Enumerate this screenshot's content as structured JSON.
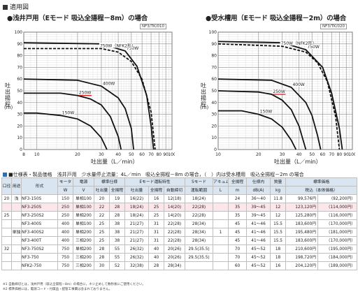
{
  "header": {
    "label": "適用図"
  },
  "chart_data": [
    {
      "type": "line",
      "title": "●浅井戸用（Eモード 吸込全揚程－8m）の場合",
      "code": "NF3/TK/010",
      "ylabel": "吐出揚程",
      "yunit": "(m)",
      "xlabel": "吐出量（L／min）",
      "ylim": [
        0,
        100
      ],
      "xlim": [
        8,
        100
      ],
      "y_ticks": [
        "0",
        "10",
        "20",
        "30",
        "40",
        "50",
        "60",
        "70",
        "80",
        "90",
        "100"
      ],
      "x_ticks": [
        "8",
        "10",
        "20",
        "30",
        "40",
        "50",
        "60",
        "70",
        "80",
        "90",
        "100"
      ],
      "series": [
        {
          "name": "150W",
          "x": [
            8,
            10,
            15,
            20,
            25,
            30,
            33
          ],
          "y": [
            31,
            31,
            29,
            26,
            20,
            10,
            0
          ]
        },
        {
          "name": "250W",
          "x": [
            8,
            15,
            20,
            25,
            30,
            35,
            40,
            42
          ],
          "y": [
            48,
            48,
            46,
            43,
            38,
            28,
            11,
            0
          ]
        },
        {
          "name": "400W",
          "x": [
            8,
            20,
            30,
            40,
            45,
            50,
            52
          ],
          "y": [
            60,
            59,
            54,
            44,
            35,
            18,
            0
          ]
        },
        {
          "name": "750W",
          "x": [
            8,
            30,
            45,
            55,
            65,
            70,
            73
          ],
          "y": [
            91,
            90,
            84,
            71,
            46,
            20,
            0
          ]
        },
        {
          "name": "750W（NFK2形）",
          "x": [
            8,
            30,
            40,
            50,
            60,
            70,
            75
          ],
          "y": [
            86,
            86,
            83,
            75,
            60,
            32,
            0
          ]
        }
      ]
    },
    {
      "type": "line",
      "title": "●受水槽用（Eモード 吸込全揚程－2m）の場合",
      "code": "NF3/TK/020",
      "ylabel": "吐出揚程",
      "yunit": "(m)",
      "xlabel": "吐出量（L／min）",
      "ylim": [
        0,
        100
      ],
      "xlim": [
        10,
        100
      ],
      "y_ticks": [
        "0",
        "10",
        "20",
        "30",
        "40",
        "50",
        "60",
        "70",
        "80",
        "90",
        "100"
      ],
      "x_ticks": [
        "10",
        "20",
        "30",
        "40",
        "50",
        "60",
        "70",
        "80",
        "90",
        "100"
      ],
      "series": [
        {
          "name": "150W",
          "x": [
            10,
            15,
            20,
            25,
            30,
            35,
            38
          ],
          "y": [
            33,
            33,
            30,
            26,
            19,
            8,
            0
          ]
        },
        {
          "name": "250W",
          "x": [
            10,
            20,
            25,
            30,
            35,
            40,
            45
          ],
          "y": [
            50,
            49,
            47,
            42,
            34,
            20,
            0
          ]
        },
        {
          "name": "400W",
          "x": [
            10,
            25,
            35,
            45,
            50,
            55,
            58
          ],
          "y": [
            60,
            59,
            53,
            40,
            29,
            12,
            0
          ]
        },
        {
          "name": "750W",
          "x": [
            10,
            30,
            45,
            60,
            70,
            80,
            84
          ],
          "y": [
            92,
            91,
            85,
            70,
            48,
            18,
            0
          ]
        },
        {
          "name": "750W（NFK2形）",
          "x": [
            10,
            30,
            45,
            55,
            65,
            75,
            80
          ],
          "y": [
            90,
            88,
            83,
            74,
            58,
            28,
            0
          ]
        }
      ]
    }
  ],
  "spec": {
    "title": "■仕様表・製品価格　浅井戸用　少水量停止流量：4L／min　吸込全揚程－8m の場合，（　）内は受水槽用　吸込全揚程－2m の場合",
    "headers": [
      "口径",
      "用途",
      "形式",
      "モータ",
      "電源",
      "標準仕様",
      "Eモード運転特性",
      "Sモード",
      "アキュム",
      "全揚程",
      "仕様内",
      "質量",
      "標準価格"
    ],
    "subheaders": [
      "mm",
      "",
      "",
      "W",
      "V",
      "吐出量",
      "全揚程",
      "吐出量",
      "全揚程",
      "自動締切",
      "運転範囲",
      "L",
      "m",
      "dB(A)",
      "kg",
      "税込（本体価格）"
    ],
    "row_label_use": "単独",
    "row_label_use2": "浅",
    "rows": [
      [
        "20",
        "NF3-150S",
        "150",
        "単相100",
        "20",
        "19",
        "16(22)",
        "16",
        "12(18)",
        "18(24)",
        "",
        "24",
        "36〜40",
        "11.8",
        "99,576円",
        "（92,200円）"
      ],
      [
        "",
        "NF3-250S",
        "250",
        "単相100",
        "22",
        "28",
        "18(24)",
        "25",
        "14(20)",
        "22(28)",
        "",
        "35",
        "39〜45",
        "12",
        "123,120円",
        "（114,000円）"
      ],
      [
        "25",
        "NF3-250S2",
        "250",
        "単相200",
        "22",
        "28",
        "18(24)",
        "25",
        "14(20)",
        "22(28)",
        "",
        "35",
        "39〜45",
        "12",
        "125,280円",
        "（116,000円）"
      ],
      [
        "",
        "NF3-400S",
        "400",
        "単相100",
        "25",
        "38",
        "21(27)",
        "31",
        "22(28)",
        "28(34)",
        "",
        "45",
        "41〜46",
        "15.5",
        "183,600円",
        "（170,000円）"
      ],
      [
        "",
        "NF3-400S2",
        "400",
        "単相200",
        "25",
        "38",
        "21(27)",
        "31",
        "22(28)",
        "28(34)",
        "1",
        "45",
        "41〜46",
        "15.5",
        "195,480円",
        "（181,000円）"
      ],
      [
        "",
        "NF3-400T",
        "400",
        "三相200",
        "25",
        "38",
        "21(27)",
        "31",
        "22(28)",
        "28(34)",
        "",
        "45",
        "41〜46",
        "15.5",
        "183,600円",
        "（170,000円）"
      ],
      [
        "32",
        "NF3-750S2",
        "750",
        "単相200",
        "28",
        "55",
        "26(32)",
        "40",
        "20(26)",
        "29.5(35.5)",
        "",
        "70",
        "45〜52",
        "18",
        "210,600円",
        "（195,000円）"
      ],
      [
        "",
        "NF3-750",
        "750",
        "三相200",
        "28",
        "55",
        "26(32)",
        "40",
        "20(26)",
        "29.5(35.5)",
        "",
        "70",
        "45〜52",
        "18",
        "198,720円",
        "（184,000円）"
      ],
      [
        "",
        "NFK2-750",
        "750",
        "三相200",
        "30",
        "52",
        "32(38)",
        "28",
        "28(34)",
        "",
        "",
        "60",
        "45〜52",
        "16",
        "204,120円",
        "（189,000円）"
      ]
    ],
    "notes": [
      "※1 自動締切とは，浅井戸用（吸込全揚程－8m）の場合に，ネジ止めして数秒後にご使用ください。",
      "※2 標準価格には，電源コード・付属品・配管工事費は含まれておりません。"
    ]
  }
}
